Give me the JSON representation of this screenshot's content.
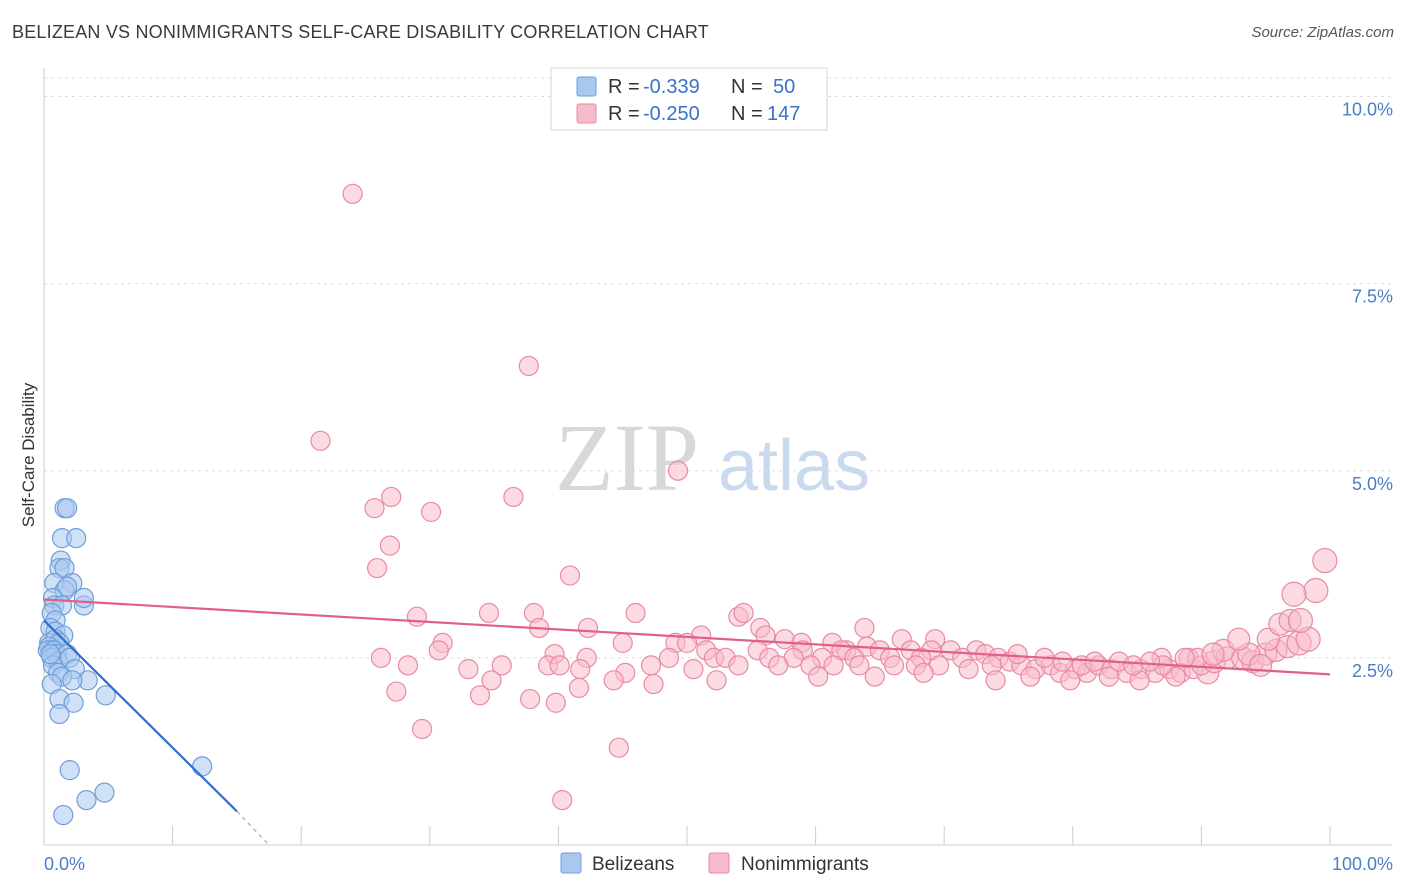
{
  "header": {
    "title": "BELIZEAN VS NONIMMIGRANTS SELF-CARE DISABILITY CORRELATION CHART",
    "source": "Source: ZipAtlas.com"
  },
  "watermark": {
    "zip": "ZIP",
    "atlas": "atlas"
  },
  "legend": {
    "r_label": "R =",
    "n_label": "N =",
    "rows": [
      {
        "r": "-0.339",
        "n": "50",
        "color": "#a9c8f0",
        "stroke": "#6f9fd8"
      },
      {
        "r": "-0.250",
        "n": "147",
        "color": "#f7bccb",
        "stroke": "#e88aa5"
      }
    ]
  },
  "bottom_legend": [
    "Belizeans",
    "Nonimmigrants"
  ],
  "chart_data": {
    "type": "scatter",
    "xlabel": "",
    "ylabel": "Self-Care Disability",
    "xlim": [
      0,
      100
    ],
    "ylim": [
      0,
      10
    ],
    "x_tick_labels": [
      {
        "value": 0,
        "label": "0.0%"
      },
      {
        "value": 100,
        "label": "100.0%"
      }
    ],
    "x_minor_ticks": [
      0,
      10,
      20,
      30,
      40,
      50,
      60,
      70,
      80,
      90,
      100
    ],
    "y_ticks": [
      {
        "value": 2.5,
        "label": "2.5%"
      },
      {
        "value": 5.0,
        "label": "5.0%"
      },
      {
        "value": 7.5,
        "label": "7.5%"
      },
      {
        "value": 10.0,
        "label": "10.0%"
      }
    ],
    "grid": true,
    "series": [
      {
        "name": "Belizeans",
        "color": "#a9c8f0",
        "stroke": "#6f9fd8",
        "trend_color": "#2f6fd0",
        "trend": {
          "x0": 0,
          "y0": 3.0,
          "x1": 15,
          "y1": 0.45,
          "x_dash_end": 17.5,
          "y_dash_end": 0.0
        },
        "points": [
          [
            1.6,
            4.5
          ],
          [
            1.8,
            4.5
          ],
          [
            1.4,
            4.1
          ],
          [
            2.5,
            4.1
          ],
          [
            1.3,
            3.8
          ],
          [
            1.2,
            3.7
          ],
          [
            1.6,
            3.7
          ],
          [
            0.8,
            3.5
          ],
          [
            2.2,
            3.5
          ],
          [
            1.6,
            3.4
          ],
          [
            1.8,
            3.45
          ],
          [
            0.7,
            3.3
          ],
          [
            0.8,
            3.2
          ],
          [
            1.4,
            3.2
          ],
          [
            3.1,
            3.2
          ],
          [
            3.1,
            3.3
          ],
          [
            0.6,
            3.1
          ],
          [
            0.9,
            3.0
          ],
          [
            0.5,
            2.9
          ],
          [
            0.9,
            2.85
          ],
          [
            1.5,
            2.8
          ],
          [
            0.4,
            2.7
          ],
          [
            0.9,
            2.75
          ],
          [
            1.2,
            2.7
          ],
          [
            0.4,
            2.65
          ],
          [
            0.6,
            2.6
          ],
          [
            0.3,
            2.6
          ],
          [
            0.8,
            2.6
          ],
          [
            1.0,
            2.55
          ],
          [
            1.8,
            2.55
          ],
          [
            0.6,
            2.5
          ],
          [
            1.1,
            2.45
          ],
          [
            2.0,
            2.5
          ],
          [
            0.7,
            2.4
          ],
          [
            2.4,
            2.35
          ],
          [
            1.1,
            2.3
          ],
          [
            1.4,
            2.25
          ],
          [
            3.4,
            2.2
          ],
          [
            0.6,
            2.15
          ],
          [
            2.2,
            2.2
          ],
          [
            4.8,
            2.0
          ],
          [
            1.2,
            1.95
          ],
          [
            2.3,
            1.9
          ],
          [
            1.2,
            1.75
          ],
          [
            12.3,
            1.05
          ],
          [
            2.0,
            1.0
          ],
          [
            4.7,
            0.7
          ],
          [
            3.3,
            0.6
          ],
          [
            1.5,
            0.4
          ],
          [
            0.5,
            2.55
          ]
        ]
      },
      {
        "name": "Nonimmigrants",
        "color": "#f7bccb",
        "stroke": "#e88aa5",
        "trend_color": "#e0608a",
        "trend": {
          "x0": 0,
          "y0": 3.28,
          "x1": 100,
          "y1": 2.28
        },
        "points": [
          [
            24.0,
            8.7
          ],
          [
            21.5,
            5.4
          ],
          [
            37.7,
            6.4
          ],
          [
            49.3,
            5.0
          ],
          [
            25.7,
            4.5
          ],
          [
            26.9,
            4.0
          ],
          [
            27.0,
            4.65
          ],
          [
            30.1,
            4.45
          ],
          [
            36.5,
            4.65
          ],
          [
            25.9,
            3.7
          ],
          [
            40.9,
            3.6
          ],
          [
            29.0,
            3.05
          ],
          [
            34.6,
            3.1
          ],
          [
            38.1,
            3.1
          ],
          [
            46.0,
            3.1
          ],
          [
            54.0,
            3.05
          ],
          [
            54.4,
            3.1
          ],
          [
            42.3,
            2.9
          ],
          [
            38.5,
            2.9
          ],
          [
            55.7,
            2.9
          ],
          [
            63.8,
            2.9
          ],
          [
            51.1,
            2.8
          ],
          [
            56.1,
            2.8
          ],
          [
            57.6,
            2.75
          ],
          [
            66.7,
            2.75
          ],
          [
            69.3,
            2.75
          ],
          [
            31.0,
            2.7
          ],
          [
            45.0,
            2.7
          ],
          [
            49.1,
            2.7
          ],
          [
            50.0,
            2.7
          ],
          [
            58.9,
            2.7
          ],
          [
            61.3,
            2.7
          ],
          [
            62.4,
            2.6
          ],
          [
            30.7,
            2.6
          ],
          [
            39.7,
            2.55
          ],
          [
            51.5,
            2.6
          ],
          [
            55.5,
            2.6
          ],
          [
            59.0,
            2.6
          ],
          [
            62.0,
            2.6
          ],
          [
            64.0,
            2.65
          ],
          [
            65.0,
            2.6
          ],
          [
            67.4,
            2.6
          ],
          [
            69.0,
            2.6
          ],
          [
            70.5,
            2.6
          ],
          [
            72.5,
            2.6
          ],
          [
            73.2,
            2.55
          ],
          [
            26.2,
            2.5
          ],
          [
            42.2,
            2.5
          ],
          [
            48.6,
            2.5
          ],
          [
            52.1,
            2.5
          ],
          [
            53.0,
            2.5
          ],
          [
            56.4,
            2.5
          ],
          [
            58.3,
            2.5
          ],
          [
            60.5,
            2.5
          ],
          [
            63.0,
            2.5
          ],
          [
            65.8,
            2.5
          ],
          [
            68.2,
            2.5
          ],
          [
            71.4,
            2.5
          ],
          [
            74.2,
            2.5
          ],
          [
            75.1,
            2.45
          ],
          [
            28.3,
            2.4
          ],
          [
            33.0,
            2.35
          ],
          [
            35.6,
            2.4
          ],
          [
            39.2,
            2.4
          ],
          [
            40.1,
            2.4
          ],
          [
            41.7,
            2.35
          ],
          [
            45.2,
            2.3
          ],
          [
            47.2,
            2.4
          ],
          [
            50.5,
            2.35
          ],
          [
            54.0,
            2.4
          ],
          [
            57.1,
            2.4
          ],
          [
            59.6,
            2.4
          ],
          [
            61.4,
            2.4
          ],
          [
            63.4,
            2.4
          ],
          [
            66.1,
            2.4
          ],
          [
            67.8,
            2.4
          ],
          [
            69.6,
            2.4
          ],
          [
            71.9,
            2.35
          ],
          [
            73.7,
            2.4
          ],
          [
            76.0,
            2.4
          ],
          [
            77.1,
            2.35
          ],
          [
            78.3,
            2.4
          ],
          [
            79.0,
            2.3
          ],
          [
            80.2,
            2.35
          ],
          [
            81.1,
            2.3
          ],
          [
            82.0,
            2.4
          ],
          [
            83.0,
            2.35
          ],
          [
            84.2,
            2.3
          ],
          [
            85.3,
            2.35
          ],
          [
            86.4,
            2.3
          ],
          [
            87.5,
            2.35
          ],
          [
            88.4,
            2.3
          ],
          [
            89.4,
            2.35
          ],
          [
            90.5,
            2.3
          ],
          [
            34.8,
            2.2
          ],
          [
            41.6,
            2.1
          ],
          [
            44.3,
            2.2
          ],
          [
            47.4,
            2.15
          ],
          [
            52.3,
            2.2
          ],
          [
            60.2,
            2.25
          ],
          [
            64.6,
            2.25
          ],
          [
            68.4,
            2.3
          ],
          [
            74.0,
            2.2
          ],
          [
            76.7,
            2.25
          ],
          [
            79.8,
            2.2
          ],
          [
            82.8,
            2.25
          ],
          [
            85.2,
            2.2
          ],
          [
            88.0,
            2.25
          ],
          [
            27.4,
            2.05
          ],
          [
            33.9,
            2.0
          ],
          [
            37.8,
            1.95
          ],
          [
            39.8,
            1.9
          ],
          [
            29.4,
            1.55
          ],
          [
            44.7,
            1.3
          ],
          [
            40.3,
            0.6
          ],
          [
            79.2,
            2.45
          ],
          [
            80.7,
            2.4
          ],
          [
            81.7,
            2.45
          ],
          [
            83.6,
            2.45
          ],
          [
            86.9,
            2.5
          ],
          [
            89.0,
            2.5
          ],
          [
            90.0,
            2.4
          ],
          [
            91.0,
            2.45
          ],
          [
            92.0,
            2.5
          ],
          [
            93.2,
            2.5
          ],
          [
            94.0,
            2.45
          ],
          [
            95.0,
            2.55
          ],
          [
            95.8,
            2.6
          ],
          [
            96.7,
            2.65
          ],
          [
            97.6,
            2.7
          ],
          [
            98.3,
            2.75
          ],
          [
            93.7,
            2.55
          ],
          [
            91.7,
            2.6
          ],
          [
            89.7,
            2.5
          ],
          [
            88.7,
            2.5
          ],
          [
            87.0,
            2.4
          ],
          [
            92.9,
            2.75
          ],
          [
            95.2,
            2.75
          ],
          [
            96.1,
            2.95
          ],
          [
            96.9,
            3.0
          ],
          [
            97.7,
            3.0
          ],
          [
            98.9,
            3.4
          ],
          [
            99.6,
            3.8
          ],
          [
            97.2,
            3.35
          ],
          [
            75.7,
            2.55
          ],
          [
            77.8,
            2.5
          ],
          [
            84.7,
            2.4
          ],
          [
            86.0,
            2.45
          ],
          [
            90.9,
            2.55
          ],
          [
            94.6,
            2.4
          ]
        ]
      }
    ]
  }
}
